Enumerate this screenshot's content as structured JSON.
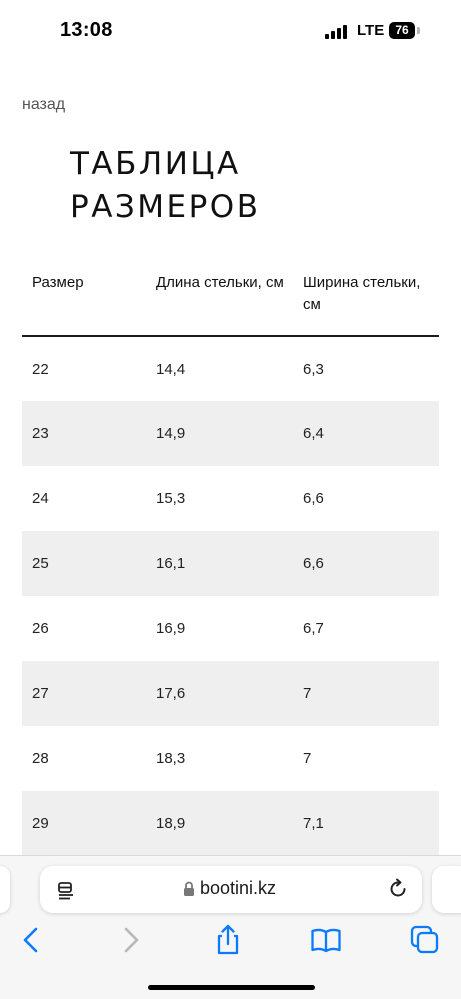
{
  "status_bar": {
    "time": "13:08",
    "network": "LTE",
    "battery": "76"
  },
  "page": {
    "back_label": "назад",
    "title_line1": "ТАБЛИЦА",
    "title_line2": "РАЗМЕРОВ"
  },
  "table": {
    "headers": [
      "Размер",
      "Длина стельки, см",
      "Ширина стельки, см"
    ],
    "rows": [
      [
        "22",
        "14,4",
        "6,3"
      ],
      [
        "23",
        "14,9",
        "6,4"
      ],
      [
        "24",
        "15,3",
        "6,6"
      ],
      [
        "25",
        "16,1",
        "6,6"
      ],
      [
        "26",
        "16,9",
        "6,7"
      ],
      [
        "27",
        "17,6",
        "7"
      ],
      [
        "28",
        "18,3",
        "7"
      ],
      [
        "29",
        "18,9",
        "7,1"
      ]
    ]
  },
  "browser": {
    "url": "bootini.kz",
    "icons": [
      "reader-icon",
      "lock-icon",
      "reload-icon",
      "back-icon",
      "forward-icon",
      "share-icon",
      "bookmarks-icon",
      "tabs-icon"
    ],
    "accent_color": "#0a7aff",
    "disabled_color": "#b8b8b8"
  }
}
